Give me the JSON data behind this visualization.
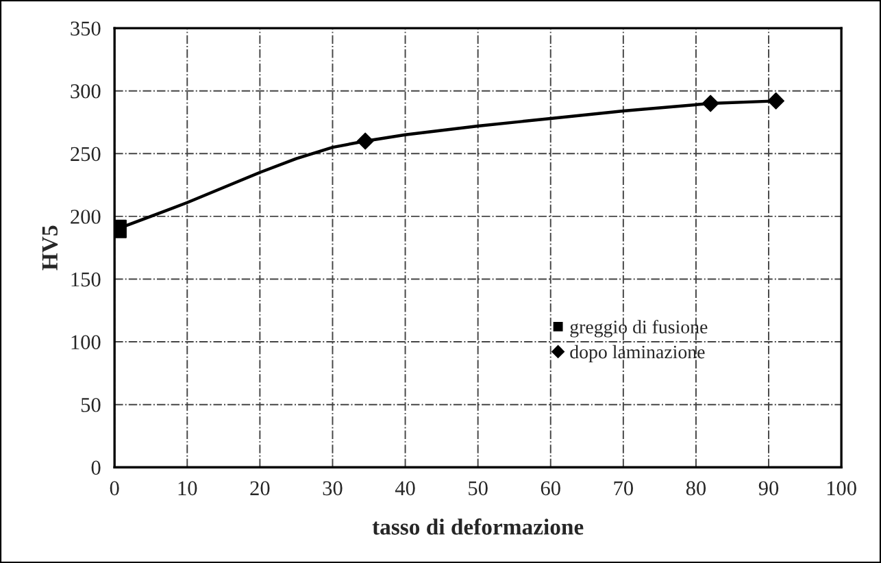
{
  "chart_data": {
    "type": "line",
    "xlabel": "tasso di deformazione",
    "ylabel": "HV5",
    "xlim": [
      0,
      100
    ],
    "xticks": [
      0,
      10,
      20,
      30,
      40,
      50,
      60,
      70,
      80,
      90,
      100
    ],
    "ylim": [
      0,
      350
    ],
    "yticks": [
      0,
      50,
      100,
      150,
      200,
      250,
      300,
      350
    ],
    "grid": true,
    "legend": "bottom right",
    "series": [
      {
        "color": "#000000",
        "marker": "none",
        "line_style": "solid",
        "x": [
          0.4,
          5,
          10,
          15,
          20,
          25,
          30,
          34.5,
          40,
          50,
          60,
          70,
          82,
          91
        ],
        "values": [
          190,
          200,
          211,
          223,
          235,
          246,
          255,
          260,
          265,
          272,
          278,
          284,
          290,
          292
        ]
      },
      {
        "type": "scatter",
        "name": "greggio di fusione",
        "color": "#000000",
        "marker": "square",
        "x": [
          0.4
        ],
        "values": [
          190
        ]
      },
      {
        "type": "scatter",
        "name": "dopo laminazione",
        "color": "#000000",
        "marker": "diamond",
        "x": [
          34.5,
          82,
          91
        ],
        "values": [
          260,
          290,
          292
        ]
      }
    ]
  }
}
